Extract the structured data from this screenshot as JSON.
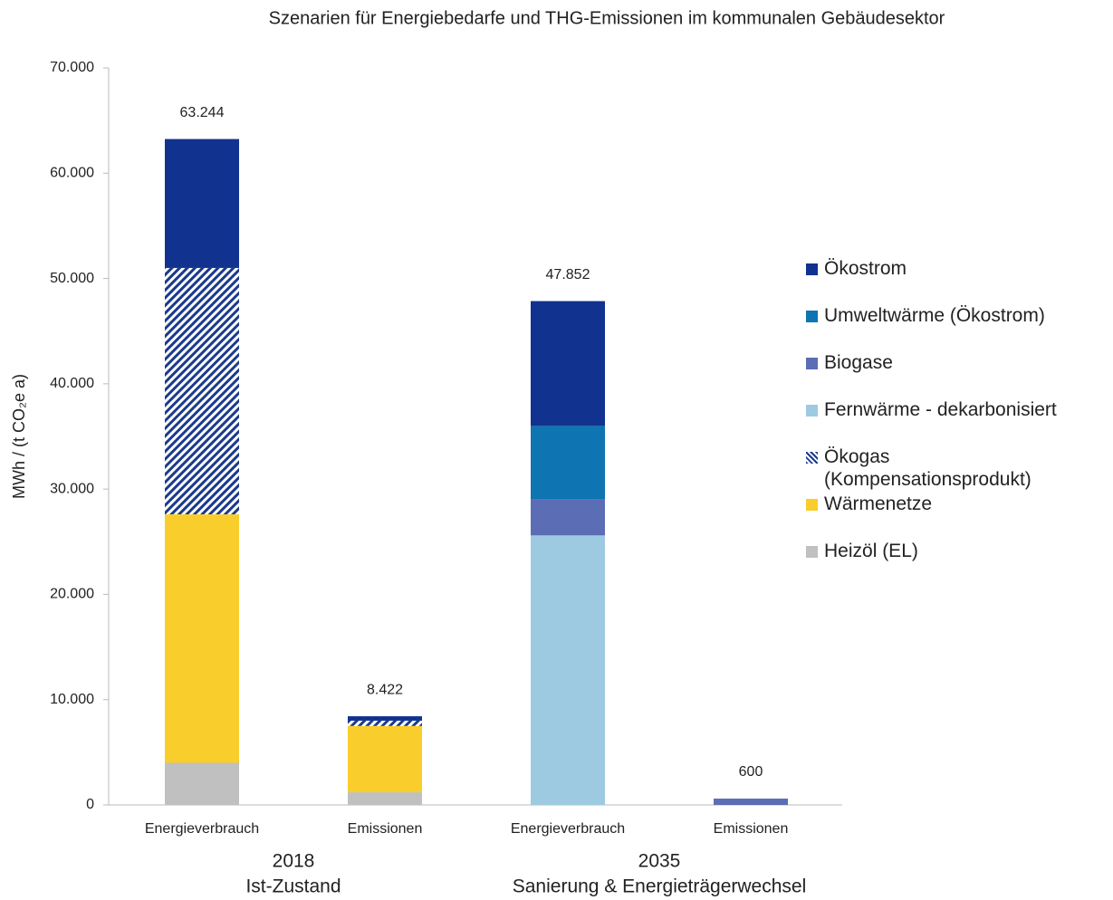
{
  "chart_data": {
    "type": "stacked_bar",
    "title": "Szenarien für Energiebedarfe und THG-Emissionen im kommunalen Gebäudesektor",
    "y_label": "MWh / (t CO₂e a)",
    "categories": [
      "Energieverbrauch",
      "Emissionen",
      "Energieverbrauch",
      "Emissionen"
    ],
    "groups": [
      {
        "name": "2018",
        "subtitle": "Ist-Zustand"
      },
      {
        "name": "2035",
        "subtitle": "Sanierung & Energieträgerwechsel"
      }
    ],
    "series": [
      {
        "name": "Heizöl (EL)",
        "color": "#c0c0c0",
        "values": [
          4000,
          1200,
          null,
          null
        ]
      },
      {
        "name": "Wärmenetze",
        "color": "#f9cd2b",
        "values": [
          23600,
          6300,
          null,
          null
        ]
      },
      {
        "name": "Ökogas (Kompensationsprodukt)",
        "color": "#1b3a8c",
        "pattern": "hatch",
        "values": [
          23400,
          500,
          null,
          null
        ]
      },
      {
        "name": "Fernwärme - dekarbonisiert",
        "color": "#9ecae1",
        "values": [
          null,
          null,
          25600,
          null
        ]
      },
      {
        "name": "Biogase",
        "color": "#5b6db5",
        "values": [
          null,
          null,
          3400,
          600
        ]
      },
      {
        "name": "Umweltwärme (Ökostrom)",
        "color": "#0e74b2",
        "values": [
          null,
          null,
          7000,
          null
        ]
      },
      {
        "name": "Ökostrom",
        "color": "#12328f",
        "values": [
          12244,
          422,
          11852,
          null
        ]
      }
    ],
    "totals": {
      "values": [
        63244,
        8422,
        47852,
        600
      ],
      "value_labels": [
        "63.244",
        "8.422",
        "47.852",
        "600"
      ]
    },
    "ylim": [
      0,
      70000
    ],
    "yticks": [
      0,
      {
        "value": 10000,
        "label": "10.000"
      },
      {
        "value": 20000,
        "label": "20.000"
      },
      {
        "value": 30000,
        "label": "30.000"
      },
      {
        "value": 40000,
        "label": "40.000"
      },
      {
        "value": 50000,
        "label": "50.000"
      },
      {
        "value": 60000,
        "label": "60.000"
      },
      {
        "value": 70000,
        "label": "70.000"
      }
    ],
    "grid": false,
    "legend": "right"
  }
}
